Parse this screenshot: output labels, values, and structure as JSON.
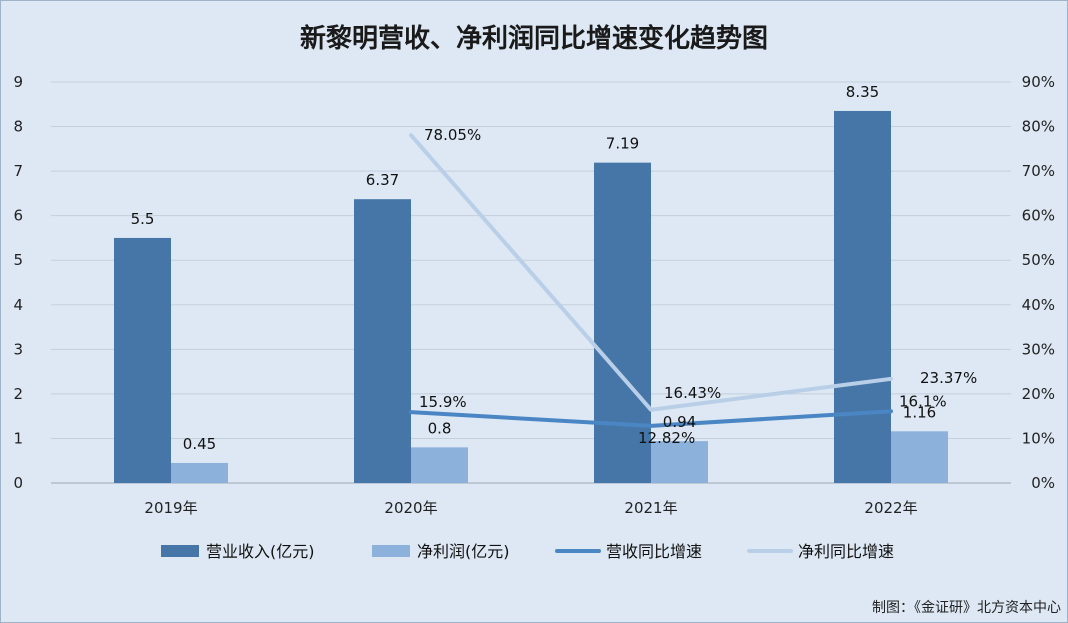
{
  "chart_data": {
    "type": "bar",
    "title": "新黎明营收、净利润同比增速变化趋势图",
    "categories": [
      "2019年",
      "2020年",
      "2021年",
      "2022年"
    ],
    "y_left": {
      "min": 0,
      "max": 9,
      "ticks": [
        "0",
        "1",
        "2",
        "3",
        "4",
        "5",
        "6",
        "7",
        "8",
        "9"
      ]
    },
    "y_right": {
      "min": 0,
      "max": 90,
      "ticks": [
        "0%",
        "10%",
        "20%",
        "30%",
        "40%",
        "50%",
        "60%",
        "70%",
        "80%",
        "90%"
      ]
    },
    "grid": true,
    "legend_position": "bottom",
    "series": [
      {
        "name": "营业收入(亿元)",
        "kind": "bar",
        "axis": "left",
        "color": "#4676a8",
        "values": [
          5.5,
          6.37,
          7.19,
          8.35
        ],
        "labels": [
          "5.5",
          "6.37",
          "7.19",
          "8.35"
        ]
      },
      {
        "name": "净利润(亿元)",
        "kind": "bar",
        "axis": "left",
        "color": "#8cb1db",
        "values": [
          0.45,
          0.8,
          0.94,
          1.16
        ],
        "labels": [
          "0.45",
          "0.8",
          "0.94",
          "1.16"
        ]
      },
      {
        "name": "营收同比增速",
        "kind": "line",
        "axis": "right",
        "color": "#4a86c4",
        "values": [
          null,
          15.9,
          12.82,
          16.1
        ],
        "labels": [
          null,
          "15.9%",
          "12.82%",
          "16.1%"
        ]
      },
      {
        "name": "净利同比增速",
        "kind": "line",
        "axis": "right",
        "color": "#b9cfe8",
        "values": [
          null,
          78.05,
          16.43,
          23.37
        ],
        "labels": [
          null,
          "78.05%",
          "16.43%",
          "23.37%"
        ]
      }
    ]
  },
  "source_note": "制图：《金证研》北方资本中心"
}
